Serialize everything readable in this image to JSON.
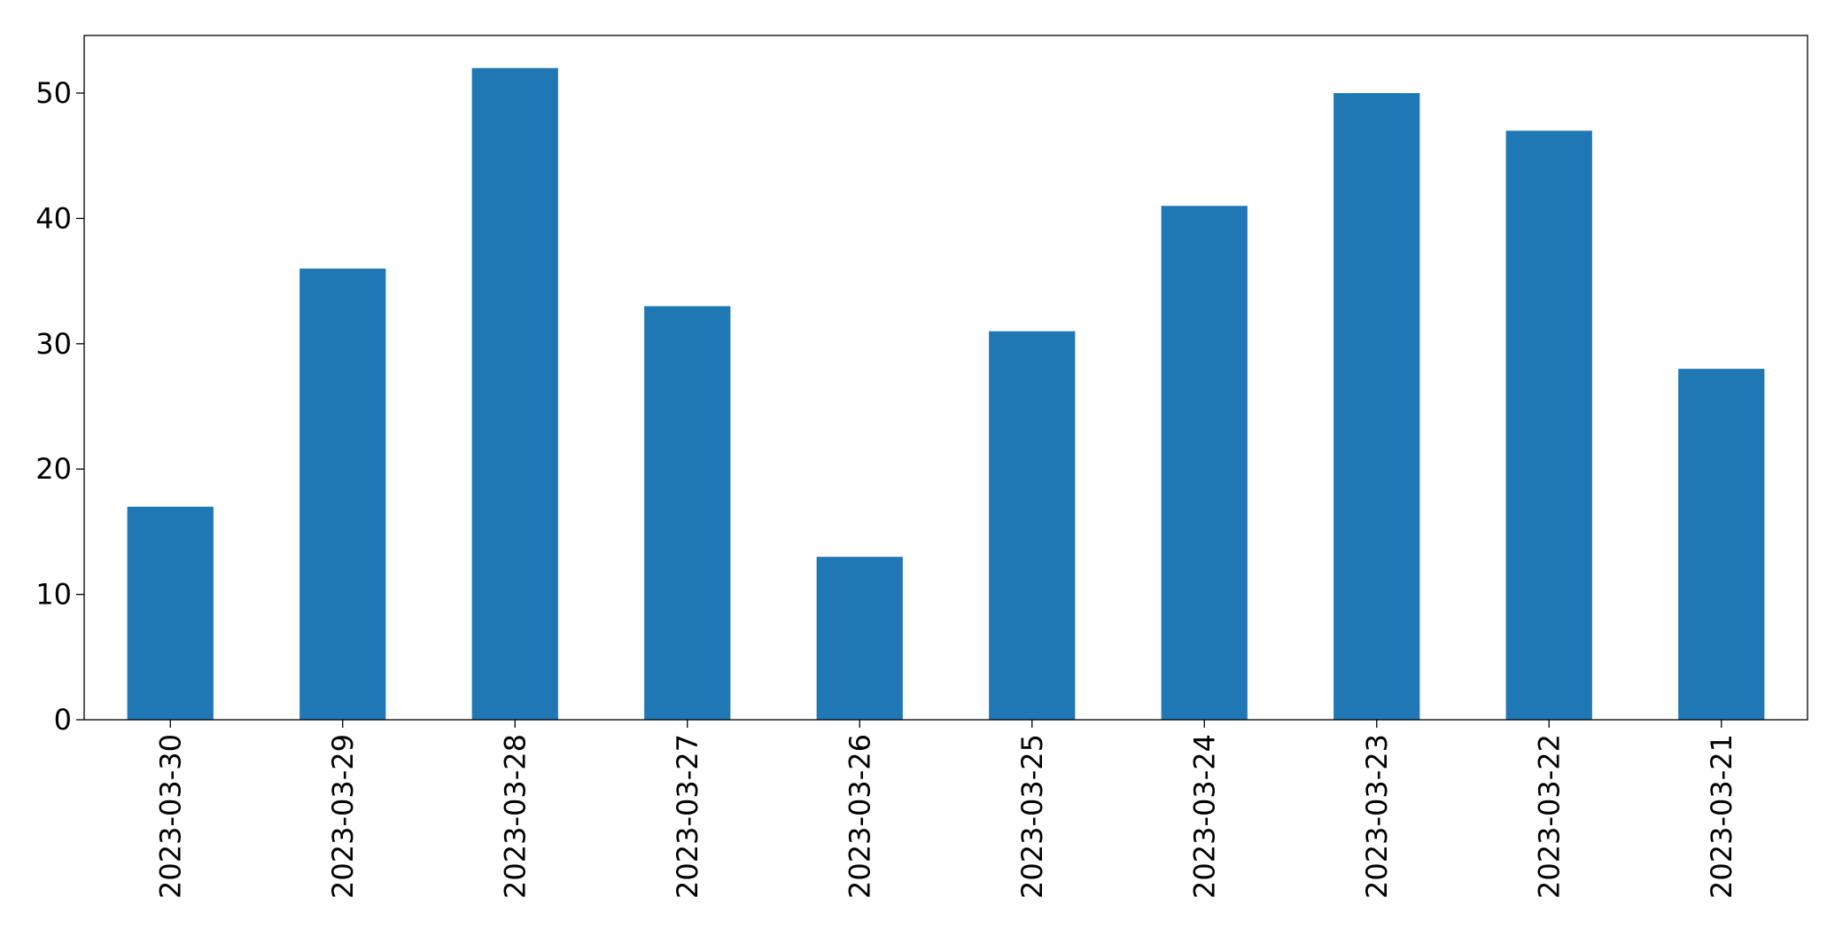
{
  "chart_data": {
    "type": "bar",
    "title": "",
    "xlabel": "",
    "ylabel": "",
    "categories": [
      "2023-03-30",
      "2023-03-29",
      "2023-03-28",
      "2023-03-27",
      "2023-03-26",
      "2023-03-25",
      "2023-03-24",
      "2023-03-23",
      "2023-03-22",
      "2023-03-21"
    ],
    "values": [
      17,
      36,
      52,
      33,
      13,
      31,
      41,
      50,
      47,
      28
    ],
    "ylim": [
      0,
      54.6
    ],
    "yticks": [
      0,
      10,
      20,
      30,
      40,
      50
    ],
    "ytick_labels": [
      "0",
      "10",
      "20",
      "30",
      "40",
      "50"
    ],
    "bar_color": "#1f77b4",
    "grid": false,
    "legend": "none"
  }
}
